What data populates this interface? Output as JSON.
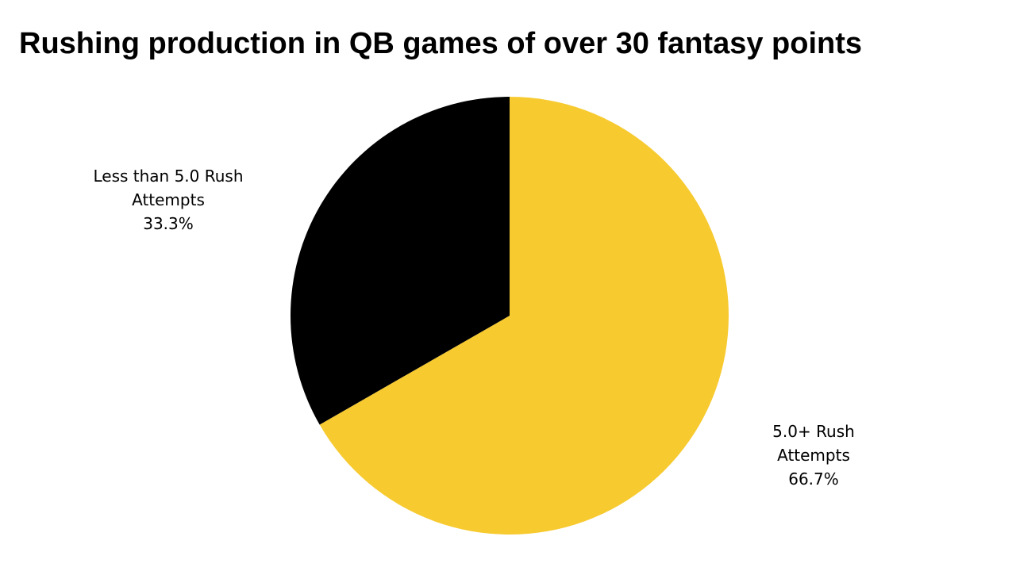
{
  "chart_data": {
    "type": "pie",
    "title": "Rushing production in QB games of over 30 fantasy points",
    "slices": [
      {
        "label_lines": [
          "5.0+ Rush",
          "Attempts"
        ],
        "value": 66.7,
        "value_label": "66.7%",
        "color": "#F7CA30"
      },
      {
        "label_lines": [
          "Less than 5.0 Rush",
          "Attempts"
        ],
        "value": 33.3,
        "value_label": "33.3%",
        "color": "#000000"
      }
    ],
    "start": "12 o'clock",
    "direction": "clockwise",
    "legend": "none",
    "labels_outside": true
  }
}
